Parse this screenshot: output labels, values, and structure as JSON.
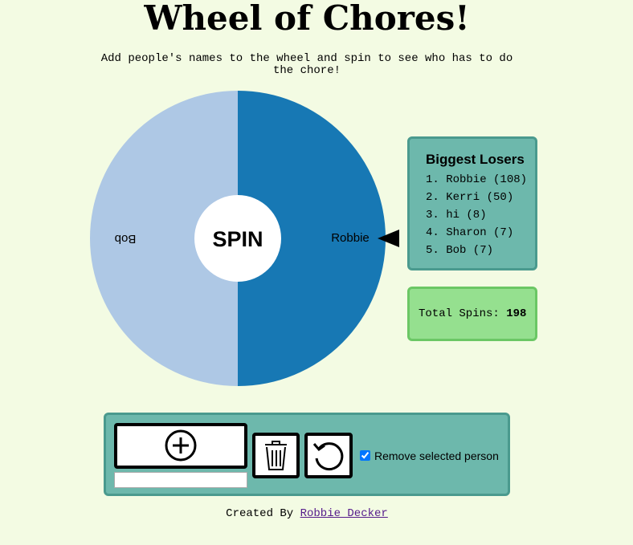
{
  "header": {
    "title": "Wheel of Chores!",
    "subtitle": "Add people's names to the wheel and spin to see who has to do the chore!"
  },
  "wheel": {
    "segments": [
      {
        "name": "Bob",
        "color": "#aec8e5"
      },
      {
        "name": "Robbie",
        "color": "#1778b4"
      }
    ],
    "center_label": "SPIN"
  },
  "leaderboard": {
    "title": "Biggest Losers",
    "entries": [
      "1. Robbie (108)",
      "2. Kerri (50)",
      "3. hi (8)",
      "4. Sharon (7)",
      "5. Bob (7)"
    ]
  },
  "total_spins": {
    "label": "Total Spins:",
    "value": 198
  },
  "controls": {
    "checkbox_label": "Remove selected person",
    "checked": true
  },
  "footer": {
    "text": "Created By",
    "link": "Robbie Decker"
  }
}
